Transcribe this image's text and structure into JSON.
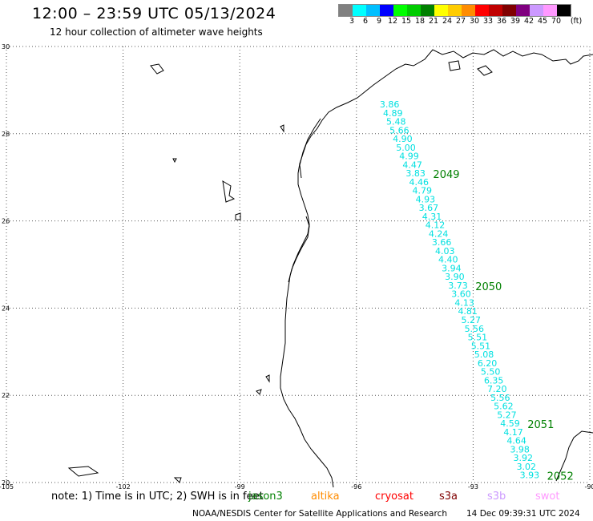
{
  "header": {
    "title": "12:00 – 23:59 UTC 05/13/2024",
    "subtitle": "12 hour collection of altimeter wave heights"
  },
  "colorbar": {
    "unit": "(ft)",
    "colors": [
      "#808080",
      "#00ffff",
      "#00bfff",
      "#0000ff",
      "#00ff00",
      "#00cc00",
      "#008000",
      "#ffff00",
      "#ffcc00",
      "#ff8c00",
      "#ff0000",
      "#c00000",
      "#800000",
      "#800080",
      "#cc99ff",
      "#ff99ff",
      "#000000"
    ],
    "labels": [
      "3",
      "6",
      "9",
      "12",
      "15",
      "18",
      "21",
      "24",
      "27",
      "30",
      "33",
      "36",
      "39",
      "42",
      "45",
      "70"
    ]
  },
  "map": {
    "lat_labels": [
      "30",
      "28",
      "26",
      "24",
      "22",
      "20"
    ],
    "lon_labels": [
      "-105",
      "-102",
      "-99",
      "-96",
      "-93",
      "-90"
    ],
    "lat_values": [
      30,
      28,
      26,
      24,
      22,
      20
    ],
    "lon_values": [
      -105,
      -102,
      -99,
      -96,
      -93,
      -90
    ],
    "track_color": "#00e0e0",
    "time_color": "#008000",
    "swh_readings": [
      "3.86",
      "4.89",
      "5.48",
      "5.66",
      "4.90",
      "5.00",
      "4.99",
      "4.47",
      "3.83",
      "4.46",
      "4.79",
      "4.93",
      "3.67",
      "4.31",
      "4.12",
      "4.24",
      "3.66",
      "4.03",
      "4.40",
      "3.94",
      "3.90",
      "3.73",
      "3.60",
      "4.13",
      "4.81",
      "5.27",
      "5.56",
      "5.51",
      "5.51",
      "5.08",
      "6.20",
      "5.50",
      "6.35",
      "7.20",
      "5.56",
      "5.62",
      "5.27",
      "4.59",
      "4.17",
      "4.64",
      "3.98",
      "3.92",
      "3.02",
      "3.93"
    ],
    "time_labels": [
      "2049",
      "2050",
      "2051",
      "2052"
    ]
  },
  "legend": {
    "note": "note:  1) Time is in UTC;  2) SWH is in feet",
    "satellites": [
      {
        "name": "jason3",
        "color": "#008000"
      },
      {
        "name": "altika",
        "color": "#ff8c00"
      },
      {
        "name": "cryosat",
        "color": "#ff0000"
      },
      {
        "name": "s3a",
        "color": "#800000"
      },
      {
        "name": "s3b",
        "color": "#cc99ff"
      },
      {
        "name": "swot",
        "color": "#ff99ff"
      }
    ]
  },
  "footer": {
    "credit": "NOAA/NESDIS Center for Satellite Applications and Research",
    "timestamp": "14 Dec 09:39:31 UTC 2024"
  }
}
